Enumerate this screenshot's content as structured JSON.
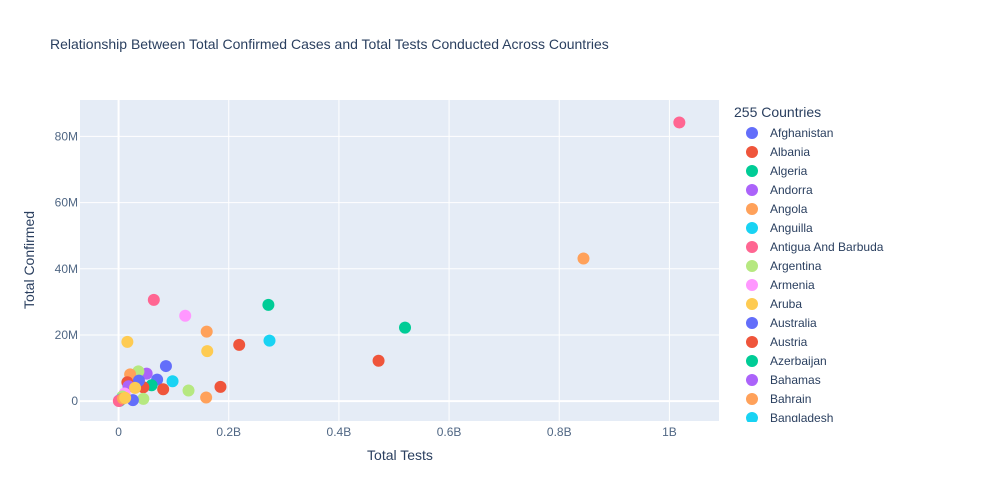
{
  "chart_data": {
    "type": "scatter",
    "title": "Relationship Between Total Confirmed Cases and Total Tests Conducted Across Countries",
    "xlabel": "Total Tests",
    "ylabel": "Total Confirmed",
    "xlim": [
      -70000000,
      1090000000
    ],
    "ylim": [
      -6000000,
      91000000
    ],
    "x_ticks": [
      0,
      200000000,
      400000000,
      600000000,
      800000000,
      1000000000
    ],
    "x_tick_labels": [
      "0",
      "0.2B",
      "0.4B",
      "0.6B",
      "0.8B",
      "1B"
    ],
    "y_ticks": [
      0,
      20000000,
      40000000,
      60000000,
      80000000
    ],
    "y_tick_labels": [
      "0",
      "20M",
      "40M",
      "60M",
      "80M"
    ],
    "grid": true,
    "legend_title": "255 Countries",
    "legend_placement": "right",
    "palette": [
      "#636efa",
      "#EF553B",
      "#00cc96",
      "#ab63fa",
      "#FFA15A",
      "#19d3f3",
      "#FF6692",
      "#B6E880",
      "#FF97FF",
      "#FECB52"
    ],
    "legend_items": [
      {
        "name": "Afghanistan",
        "color": "#636efa"
      },
      {
        "name": "Albania",
        "color": "#EF553B"
      },
      {
        "name": "Algeria",
        "color": "#00cc96"
      },
      {
        "name": "Andorra",
        "color": "#ab63fa"
      },
      {
        "name": "Angola",
        "color": "#FFA15A"
      },
      {
        "name": "Anguilla",
        "color": "#19d3f3"
      },
      {
        "name": "Antigua And Barbuda",
        "color": "#FF6692"
      },
      {
        "name": "Argentina",
        "color": "#B6E880"
      },
      {
        "name": "Armenia",
        "color": "#FF97FF"
      },
      {
        "name": "Aruba",
        "color": "#FECB52"
      },
      {
        "name": "Australia",
        "color": "#636efa"
      },
      {
        "name": "Austria",
        "color": "#EF553B"
      },
      {
        "name": "Azerbaijan",
        "color": "#00cc96"
      },
      {
        "name": "Bahamas",
        "color": "#ab63fa"
      },
      {
        "name": "Bahrain",
        "color": "#FFA15A"
      },
      {
        "name": "Bangladesh",
        "color": "#19d3f3"
      }
    ],
    "points": [
      {
        "x": 1018000000,
        "y": 84200000,
        "color": "#FF6692"
      },
      {
        "x": 844000000,
        "y": 43100000,
        "color": "#FFA15A"
      },
      {
        "x": 520000000,
        "y": 22200000,
        "color": "#00cc96"
      },
      {
        "x": 472000000,
        "y": 12200000,
        "color": "#EF553B"
      },
      {
        "x": 272000000,
        "y": 29100000,
        "color": "#00cc96"
      },
      {
        "x": 274000000,
        "y": 18300000,
        "color": "#19d3f3"
      },
      {
        "x": 219000000,
        "y": 17000000,
        "color": "#EF553B"
      },
      {
        "x": 185000000,
        "y": 4300000,
        "color": "#EF553B"
      },
      {
        "x": 160000000,
        "y": 21000000,
        "color": "#FFA15A"
      },
      {
        "x": 161000000,
        "y": 15100000,
        "color": "#FECB52"
      },
      {
        "x": 159000000,
        "y": 1100000,
        "color": "#FFA15A"
      },
      {
        "x": 121000000,
        "y": 25800000,
        "color": "#FF97FF"
      },
      {
        "x": 127000000,
        "y": 3200000,
        "color": "#B6E880"
      },
      {
        "x": 64000000,
        "y": 30600000,
        "color": "#FF6692"
      },
      {
        "x": 16000000,
        "y": 17900000,
        "color": "#FECB52"
      },
      {
        "x": 86000000,
        "y": 10600000,
        "color": "#636efa"
      },
      {
        "x": 98000000,
        "y": 6000000,
        "color": "#19d3f3"
      },
      {
        "x": 70000000,
        "y": 6500000,
        "color": "#636efa"
      },
      {
        "x": 81000000,
        "y": 3600000,
        "color": "#EF553B"
      },
      {
        "x": 51000000,
        "y": 8300000,
        "color": "#ab63fa"
      },
      {
        "x": 36000000,
        "y": 9000000,
        "color": "#B6E880"
      },
      {
        "x": 21000000,
        "y": 8100000,
        "color": "#FFA15A"
      },
      {
        "x": 60000000,
        "y": 4800000,
        "color": "#00cc96"
      },
      {
        "x": 45000000,
        "y": 4200000,
        "color": "#EF553B"
      },
      {
        "x": 37000000,
        "y": 6200000,
        "color": "#636efa"
      },
      {
        "x": 16000000,
        "y": 5700000,
        "color": "#EF553B"
      },
      {
        "x": 18000000,
        "y": 4500000,
        "color": "#ab63fa"
      },
      {
        "x": 45000000,
        "y": 700000,
        "color": "#B6E880"
      },
      {
        "x": 26000000,
        "y": 300000,
        "color": "#636efa"
      },
      {
        "x": 30000000,
        "y": 4000000,
        "color": "#FECB52"
      },
      {
        "x": 11000000,
        "y": 2300000,
        "color": "#FF97FF"
      },
      {
        "x": 7000000,
        "y": 1400000,
        "color": "#B6E880"
      },
      {
        "x": 5000000,
        "y": 600000,
        "color": "#19d3f3"
      },
      {
        "x": 3000000,
        "y": 300000,
        "color": "#636efa"
      },
      {
        "x": 2000000,
        "y": 100000,
        "color": "#00cc96"
      },
      {
        "x": 1000000,
        "y": 200000,
        "color": "#ab63fa"
      },
      {
        "x": 500000,
        "y": 50000,
        "color": "#FF6692"
      },
      {
        "x": 8000000,
        "y": 800000,
        "color": "#FFA15A"
      },
      {
        "x": 12000000,
        "y": 1000000,
        "color": "#FECB52"
      }
    ]
  }
}
